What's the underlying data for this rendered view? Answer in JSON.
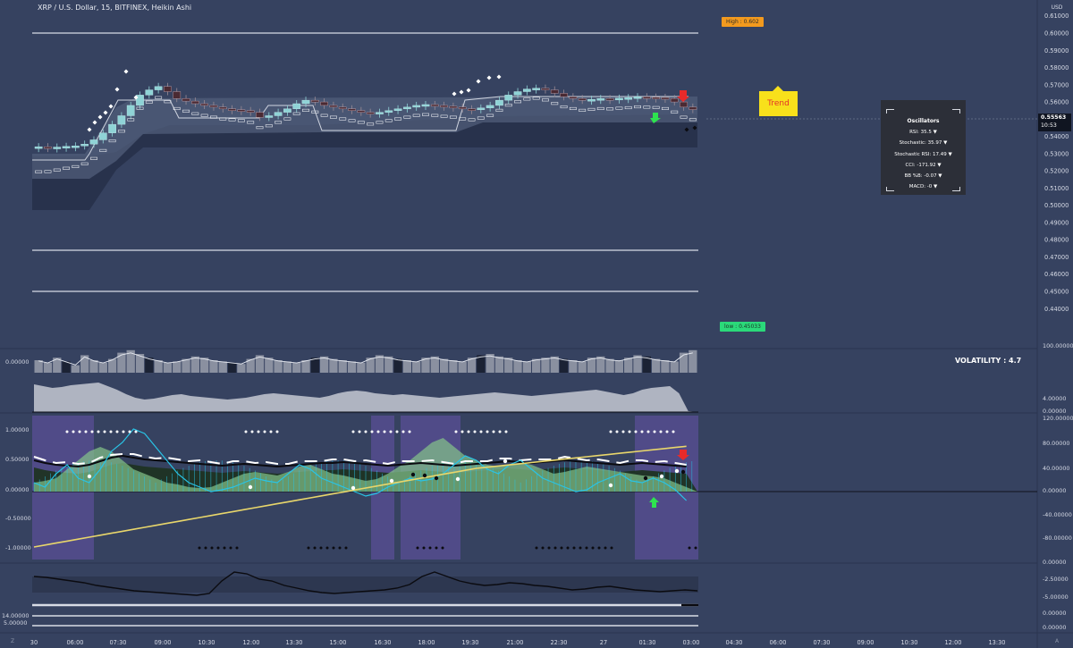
{
  "header": {
    "title": "XRP / U.S. Dollar, 15, BITFINEX, Heikin Ashi"
  },
  "price_axis": {
    "unit": "USD",
    "labels": [
      "0.61000",
      "0.60000",
      "0.59000",
      "0.58000",
      "0.57000",
      "0.56000",
      "0.54000",
      "0.53000",
      "0.52000",
      "0.51000",
      "0.50000",
      "0.49000",
      "0.48000",
      "0.47000",
      "0.46000",
      "0.45000",
      "0.44000"
    ],
    "current_price": "0.55563",
    "countdown": "10:53"
  },
  "volume_pane": {
    "left_label": "0.00000",
    "right_labels": [
      "100.00000",
      "4.00000",
      "0.00000"
    ]
  },
  "osc_pane": {
    "left_labels": [
      "1.00000",
      "0.50000",
      "0.00000",
      "-0.50000",
      "-1.00000"
    ],
    "right_labels": [
      "120.00000",
      "80.00000",
      "40.00000",
      "0.00000",
      "-40.00000",
      "-80.00000"
    ]
  },
  "bottom_pane": {
    "right_labels": [
      "0.00000",
      "-2.50000",
      "-5.00000",
      "0.00000",
      "0.00000"
    ],
    "left_labels": [
      "14.00000",
      "5.00000"
    ]
  },
  "time_axis": {
    "labels": [
      "30",
      "06:00",
      "07:30",
      "09:00",
      "10:30",
      "12:00",
      "13:30",
      "15:00",
      "16:30",
      "18:00",
      "19:30",
      "21:00",
      "22:30",
      "27",
      "01:30",
      "03:00",
      "04:30",
      "06:00",
      "07:30",
      "09:00",
      "10:30",
      "12:00",
      "13:30"
    ],
    "left_corner": "Z",
    "right_corner": "A"
  },
  "annotations": {
    "high_flag": "High : 0.602",
    "low_flag": "low : 0.45033",
    "trend_label": "Trend",
    "volatility": "VOLATILITY : 4.7"
  },
  "oscillators": {
    "title": "Oscillators",
    "rows": [
      "RSI: 35.5 ▼",
      "Stochastic: 35.97 ▼",
      "Stochastic RSI: 17.49 ▼",
      "CCI: -171.92 ▼",
      "BB %B: -0.07 ▼",
      "MACD: -0 ▼"
    ]
  },
  "colors": {
    "background": "#364260",
    "bull_candle": "#8fd3d6",
    "bear_candle": "#4a2a33",
    "cyan_line": "#29c4e6",
    "yellow_line": "#e8d66b",
    "green_area": "#7fbf7f",
    "purple_band": "#5a4f95",
    "high_flag": "#f39a1e",
    "low_flag": "#2bd97a",
    "trend_box": "#f8e01b"
  },
  "chart_data": {
    "type": "candlestick",
    "symbol": "XRP / U.S. Dollar",
    "interval": "15",
    "exchange": "BITFINEX",
    "style": "Heikin Ashi",
    "close": [
      0.534,
      0.5335,
      0.5338,
      0.5342,
      0.5345,
      0.5355,
      0.538,
      0.542,
      0.547,
      0.552,
      0.558,
      0.564,
      0.567,
      0.569,
      0.566,
      0.562,
      0.5605,
      0.559,
      0.558,
      0.557,
      0.556,
      0.5555,
      0.555,
      0.554,
      0.551,
      0.552,
      0.554,
      0.556,
      0.559,
      0.561,
      0.56,
      0.558,
      0.557,
      0.556,
      0.555,
      0.554,
      0.553,
      0.554,
      0.555,
      0.556,
      0.557,
      0.558,
      0.5585,
      0.558,
      0.5575,
      0.557,
      0.556,
      0.5555,
      0.5565,
      0.558,
      0.561,
      0.564,
      0.566,
      0.5675,
      0.568,
      0.567,
      0.565,
      0.563,
      0.562,
      0.561,
      0.5615,
      0.562,
      0.5618,
      0.5622,
      0.5625,
      0.563,
      0.5628,
      0.5626,
      0.562,
      0.56,
      0.557,
      0.5556
    ],
    "high": 0.602,
    "low": 0.45033,
    "ylim": [
      0.44,
      0.61
    ],
    "last": 0.55563
  }
}
